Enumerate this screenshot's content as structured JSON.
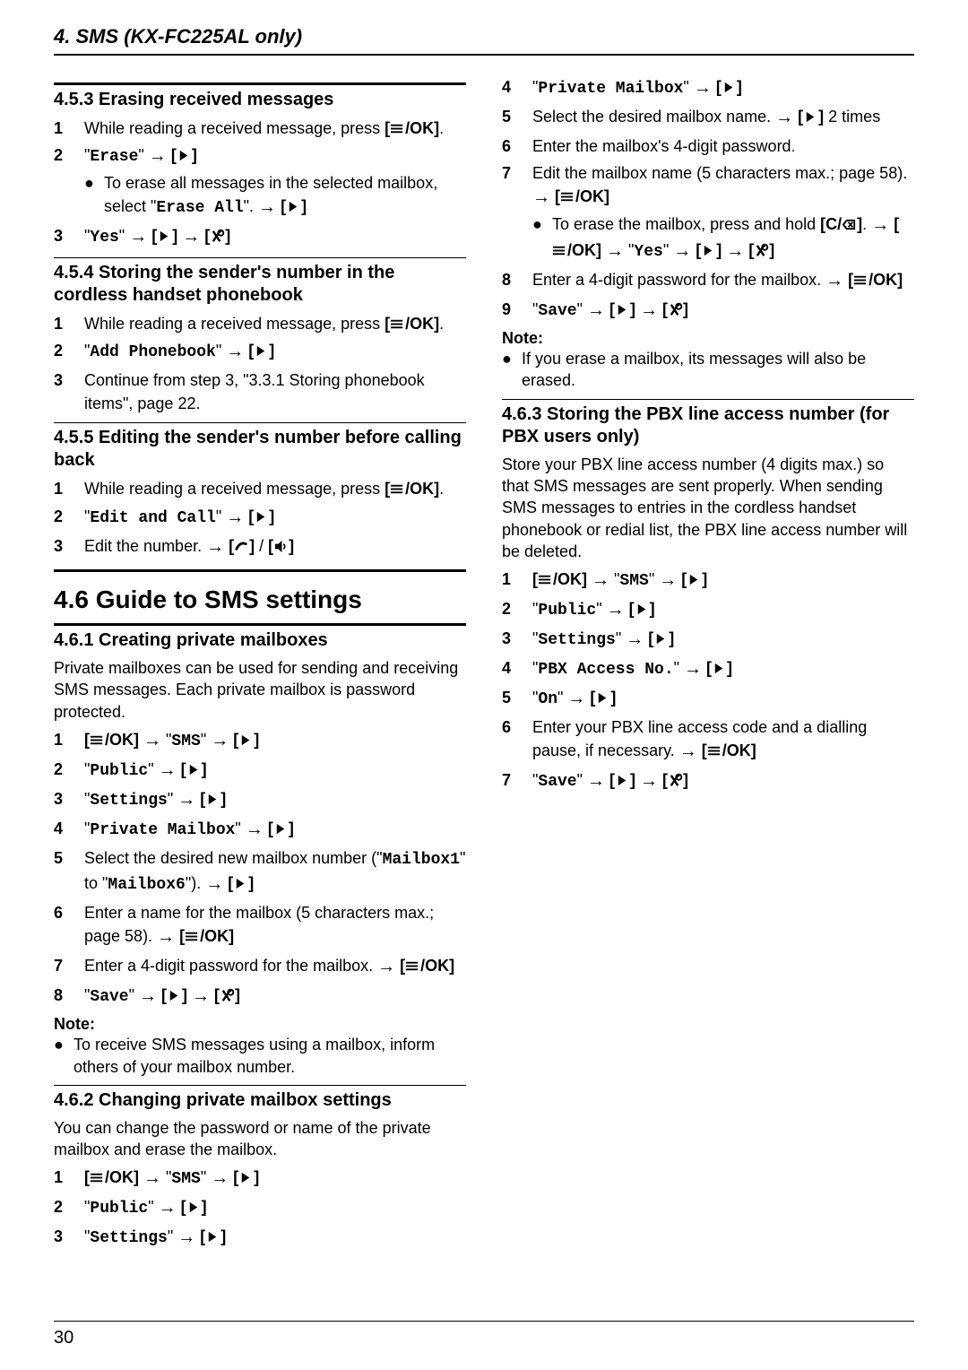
{
  "header": {
    "title": "4. SMS (KX-FC225AL only)"
  },
  "page_number": "30",
  "glyphs": {
    "arrow": "→",
    "bullet": "●"
  },
  "left": {
    "s453": {
      "title": "4.5.3 Erasing received messages",
      "steps": [
        "While reading a received message, press {menuok}.",
        "\"{q:Erase}\" {arr} {right}\n{sub}To erase all messages in the selected mailbox, select \"{q:Erase All}\". {arr} {right}",
        "\"{q:Yes}\" {arr} {right} {arr} {off}"
      ]
    },
    "s454": {
      "title": "4.5.4 Storing the sender's number in the cordless handset phonebook",
      "steps": [
        "While reading a received message, press {menuok}.",
        "\"{q:Add Phonebook}\" {arr} {right}",
        "Continue from step 3, \"3.3.1 Storing phonebook items\", page 22."
      ]
    },
    "s455": {
      "title": "4.5.5 Editing the sender's number before calling back",
      "steps": [
        "While reading a received message, press {menuok}.",
        "\"{q:Edit and Call}\" {arr} {right}",
        "Edit the number. {arr} {talk} / {sp}"
      ]
    },
    "s46": {
      "title": "4.6 Guide to SMS settings"
    },
    "s461": {
      "title": "4.6.1 Creating private mailboxes",
      "intro": "Private mailboxes can be used for sending and receiving SMS messages. Each private mailbox is password protected.",
      "steps": [
        "{menuok} {arr} \"{q:SMS}\" {arr} {right}",
        "\"{q:Public}\" {arr} {right}",
        "\"{q:Settings}\" {arr} {right}",
        "\"{q:Private Mailbox}\" {arr} {right}",
        "Select the desired new mailbox number (\"{q:Mailbox1}\" to \"{q:Mailbox6}\"). {arr} {right}",
        "Enter a name for the mailbox (5 characters max.; page 58). {arr} {menuok}",
        "Enter a 4-digit password for the mailbox. {arr} {menuok}",
        "\"{q:Save}\" {arr} {right} {arr} {off}"
      ],
      "note_label": "Note:",
      "note": "To receive SMS messages using a mailbox, inform others of your mailbox number."
    },
    "s462": {
      "title": "4.6.2 Changing private mailbox settings",
      "intro": "You can change the password or name of the private mailbox and erase the mailbox.",
      "steps": [
        "{menuok} {arr} \"{q:SMS}\" {arr} {right}",
        "\"{q:Public}\" {arr} {right}",
        "\"{q:Settings}\" {arr} {right}"
      ]
    }
  },
  "right": {
    "cont_steps_start": 4,
    "s462_cont": [
      "\"{q:Private Mailbox}\" {arr} {right}",
      "Select the desired mailbox name. {arr} {right} 2 times",
      "Enter the mailbox's 4-digit password.",
      "Edit the mailbox name (5 characters max.; page 58). {arr} {menuok}\n{sub}To erase the mailbox, press and hold {cdel}. {arr} {menuok} {arr} \"{q:Yes}\" {arr} {right} {arr} {off}",
      "Enter a 4-digit password for the mailbox. {arr} {menuok}",
      "\"{q:Save}\" {arr} {right} {arr} {off}"
    ],
    "note_label": "Note:",
    "note": "If you erase a mailbox, its messages will also be erased.",
    "s463": {
      "title": "4.6.3 Storing the PBX line access number (for PBX users only)",
      "intro": "Store your PBX line access number (4 digits max.) so that SMS messages are sent properly. When sending SMS messages to entries in the cordless handset phonebook or redial list, the PBX line access number will be deleted.",
      "steps": [
        "{menuok} {arr} \"{q:SMS}\" {arr} {right}",
        "\"{q:Public}\" {arr} {right}",
        "\"{q:Settings}\" {arr} {right}",
        "\"{q:PBX Access No.}\" {arr} {right}",
        "\"{q:On}\" {arr} {right}",
        "Enter your PBX line access code and a dialling pause, if necessary. {arr} {menuok}",
        "\"{q:Save}\" {arr} {right} {arr} {off}"
      ]
    }
  }
}
